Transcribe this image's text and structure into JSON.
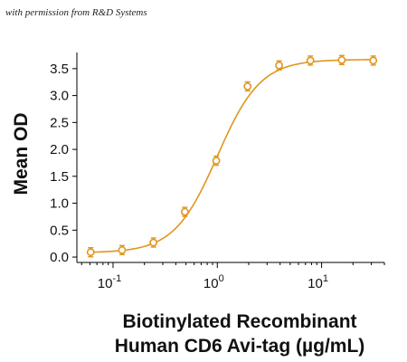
{
  "watermark": "with permission from R&D Systems",
  "chart_data": {
    "type": "scatter",
    "title": "",
    "xlabel_lines": [
      "Biotinylated Recombinant",
      "Human CD6 Avi-tag (µg/mL)"
    ],
    "ylabel": "Mean OD",
    "x_scale": "log",
    "xlim": [
      0.045,
      40
    ],
    "ylim": [
      -0.1,
      3.8
    ],
    "x_ticks": [
      {
        "value": 0.1,
        "base": "10",
        "exp": "-1"
      },
      {
        "value": 1,
        "base": "10",
        "exp": "0"
      },
      {
        "value": 10,
        "base": "10",
        "exp": "1"
      }
    ],
    "y_ticks": [
      "0.0",
      "0.5",
      "1.0",
      "1.5",
      "2.0",
      "2.5",
      "3.0",
      "3.5"
    ],
    "grid": false,
    "color": "#E0961E",
    "series": [
      {
        "x": [
          0.061,
          0.122,
          0.244,
          0.488,
          0.977,
          1.95,
          3.91,
          7.81,
          15.6,
          31.3
        ],
        "y": [
          0.09,
          0.13,
          0.27,
          0.84,
          1.79,
          3.17,
          3.56,
          3.65,
          3.66,
          3.65
        ]
      }
    ],
    "fit": {
      "bottom": 0.08,
      "top": 3.67,
      "ec50": 1.0,
      "hill": 2.1
    }
  }
}
